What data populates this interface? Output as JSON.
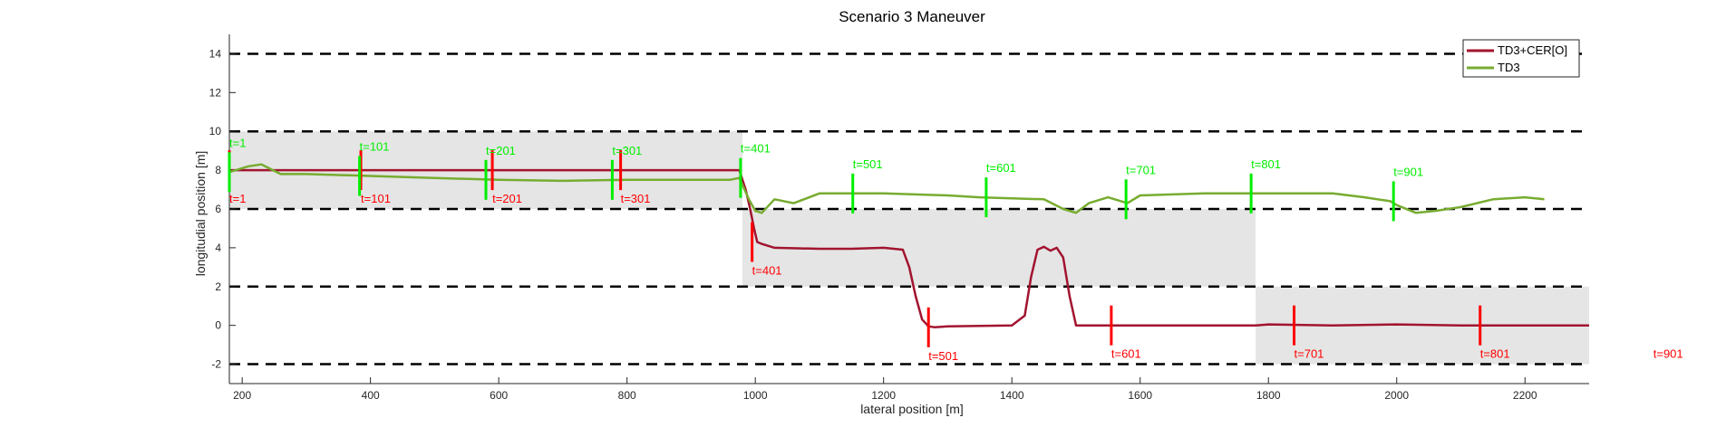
{
  "chart_data": {
    "type": "line",
    "title": "Scenario 3 Maneuver",
    "xlabel": "lateral position [m]",
    "ylabel": "longitudial position [m]",
    "xlim": [
      180,
      2300
    ],
    "ylim": [
      -3,
      15
    ],
    "xticks": [
      200,
      400,
      600,
      800,
      1000,
      1200,
      1400,
      1600,
      1800,
      2000,
      2200
    ],
    "yticks": [
      -2,
      0,
      2,
      4,
      6,
      8,
      10,
      12,
      14
    ],
    "lane_lines_y": [
      -2,
      2,
      6,
      10,
      14
    ],
    "shaded_regions": [
      {
        "x": [
          180,
          980
        ],
        "y": [
          6,
          10
        ]
      },
      {
        "x": [
          980,
          1780
        ],
        "y": [
          2,
          6
        ]
      },
      {
        "x": [
          1780,
          2300
        ],
        "y": [
          -2,
          2
        ]
      }
    ],
    "legend": {
      "placement": "top-right",
      "entries": [
        {
          "label": "TD3+CER[O]",
          "color": "#a2142f"
        },
        {
          "label": "TD3",
          "color": "#77ac30"
        }
      ]
    },
    "series": [
      {
        "name": "TD3+CER[O]",
        "color": "#a2142f",
        "x": [
          180,
          250,
          400,
          600,
          800,
          950,
          975,
          985,
          992,
          998,
          1003,
          1010,
          1030,
          1100,
          1150,
          1200,
          1230,
          1240,
          1250,
          1260,
          1270,
          1280,
          1300,
          1350,
          1400,
          1420,
          1430,
          1440,
          1450,
          1460,
          1470,
          1480,
          1490,
          1500,
          1600,
          1700,
          1780,
          1800,
          1900,
          2000,
          2100,
          2200,
          2300
        ],
        "y": [
          8.0,
          8.0,
          8.0,
          8.0,
          8.0,
          8.0,
          8.0,
          7.0,
          6.0,
          5.0,
          4.3,
          4.2,
          4.0,
          3.95,
          3.95,
          4.0,
          3.9,
          3.0,
          1.5,
          0.3,
          -0.05,
          -0.1,
          -0.05,
          -0.03,
          0.0,
          0.5,
          2.5,
          3.9,
          4.05,
          3.85,
          4.0,
          3.5,
          1.5,
          0.0,
          0.0,
          0.0,
          0.0,
          0.05,
          0.0,
          0.05,
          0.0,
          0.0,
          0.0
        ]
      },
      {
        "name": "TD3",
        "color": "#77ac30",
        "x": [
          180,
          210,
          230,
          260,
          300,
          400,
          500,
          600,
          700,
          800,
          900,
          960,
          975,
          990,
          1000,
          1010,
          1030,
          1060,
          1100,
          1200,
          1300,
          1350,
          1400,
          1450,
          1480,
          1500,
          1520,
          1550,
          1580,
          1600,
          1700,
          1800,
          1850,
          1900,
          1950,
          1990,
          2000,
          2030,
          2060,
          2100,
          2150,
          2200,
          2230
        ],
        "y": [
          7.9,
          8.2,
          8.3,
          7.8,
          7.8,
          7.7,
          7.6,
          7.5,
          7.45,
          7.5,
          7.5,
          7.5,
          7.6,
          6.5,
          5.9,
          5.8,
          6.5,
          6.3,
          6.8,
          6.8,
          6.7,
          6.6,
          6.55,
          6.5,
          6.0,
          5.8,
          6.3,
          6.6,
          6.3,
          6.7,
          6.8,
          6.8,
          6.8,
          6.8,
          6.6,
          6.4,
          6.2,
          5.8,
          5.9,
          6.1,
          6.5,
          6.6,
          6.5
        ]
      }
    ],
    "time_markers": [
      {
        "series": "TD3+CER[O]",
        "color": "#ff0000",
        "markers": [
          {
            "label": "t=1",
            "x": 180,
            "y": 8.0
          },
          {
            "label": "t=101",
            "x": 385,
            "y": 8.0
          },
          {
            "label": "t=201",
            "x": 590,
            "y": 8.0
          },
          {
            "label": "t=301",
            "x": 790,
            "y": 8.0
          },
          {
            "label": "t=401",
            "x": 995,
            "y": 4.3
          },
          {
            "label": "t=501",
            "x": 1270,
            "y": -0.1
          },
          {
            "label": "t=601",
            "x": 1555,
            "y": 0.0
          },
          {
            "label": "t=701",
            "x": 1840,
            "y": 0.0
          },
          {
            "label": "t=801",
            "x": 2130,
            "y": 0.0
          },
          {
            "label": "t=901",
            "x": 2400,
            "y": 0.0
          }
        ]
      },
      {
        "series": "TD3",
        "color": "#00ee00",
        "markers": [
          {
            "label": "t=1",
            "x": 180,
            "y": 7.9
          },
          {
            "label": "t=101",
            "x": 383,
            "y": 7.7
          },
          {
            "label": "t=201",
            "x": 580,
            "y": 7.5
          },
          {
            "label": "t=301",
            "x": 777,
            "y": 7.5
          },
          {
            "label": "t=401",
            "x": 977,
            "y": 7.6
          },
          {
            "label": "t=501",
            "x": 1152,
            "y": 6.8
          },
          {
            "label": "t=601",
            "x": 1360,
            "y": 6.6
          },
          {
            "label": "t=701",
            "x": 1578,
            "y": 6.5
          },
          {
            "label": "t=801",
            "x": 1773,
            "y": 6.8
          },
          {
            "label": "t=901",
            "x": 1995,
            "y": 6.4
          }
        ]
      }
    ]
  }
}
